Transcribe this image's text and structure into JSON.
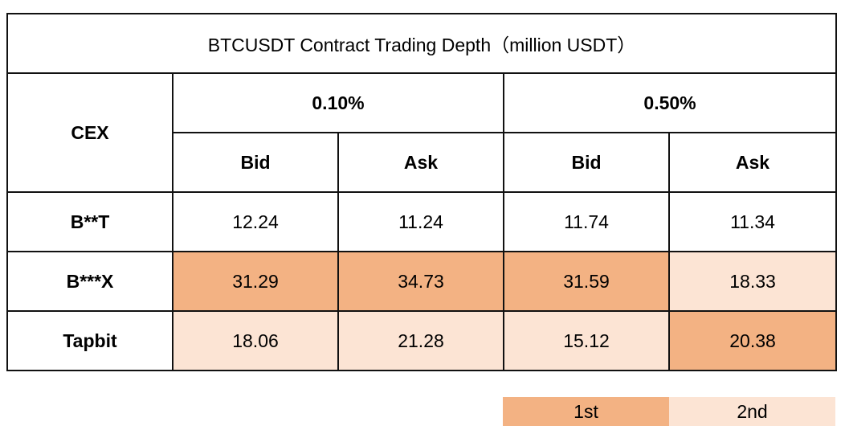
{
  "colors": {
    "first": "#f3b283",
    "second": "#fce4d4",
    "border": "#111111"
  },
  "table": {
    "title": "BTCUSDT Contract Trading Depth（million USDT）",
    "cex_header": "CEX",
    "group_headers": [
      "0.10%",
      "0.50%"
    ],
    "sub_headers": [
      "Bid",
      "Ask",
      "Bid",
      "Ask"
    ],
    "rows": [
      {
        "exchange": "B**T",
        "values": [
          "12.24",
          "11.24",
          "11.74",
          "11.34"
        ],
        "highlight": [
          "",
          "",
          "",
          ""
        ]
      },
      {
        "exchange": "B***X",
        "values": [
          "31.29",
          "34.73",
          "31.59",
          "18.33"
        ],
        "highlight": [
          "first",
          "first",
          "first",
          "second"
        ]
      },
      {
        "exchange": "Tapbit",
        "values": [
          "18.06",
          "21.28",
          "15.12",
          "20.38"
        ],
        "highlight": [
          "second",
          "second",
          "second",
          "first"
        ]
      }
    ]
  },
  "legend": {
    "first_label": "1st",
    "second_label": "2nd"
  }
}
